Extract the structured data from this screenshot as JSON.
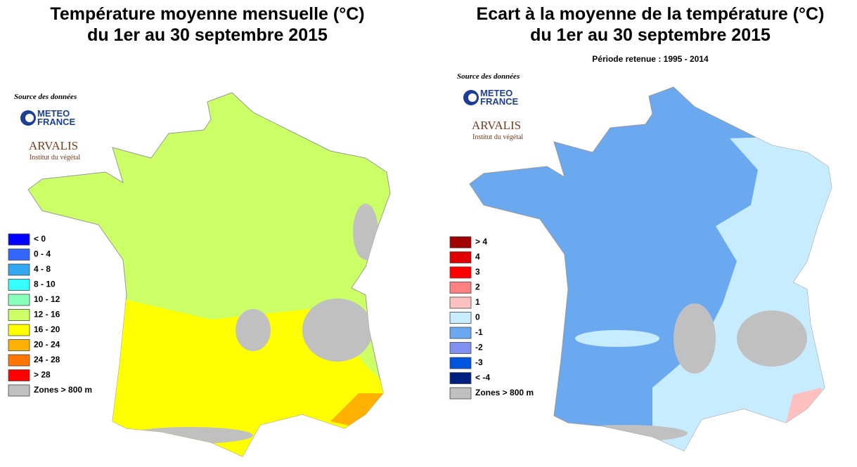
{
  "panels": [
    {
      "title": [
        "Température moyenne mensuelle (°C)",
        "du 1er au 30 septembre 2015"
      ],
      "source": {
        "label": "Source des données",
        "meteo": [
          "METEO",
          "FRANCE"
        ],
        "arvalis": "ARVALIS",
        "arvalis_sub": "Institut du végétal"
      },
      "legend": [
        {
          "label": "< 0",
          "color": "#0000ff"
        },
        {
          "label": "0 - 4",
          "color": "#3366ff"
        },
        {
          "label": "4 - 8",
          "color": "#33a8f0"
        },
        {
          "label": "8 - 10",
          "color": "#33ffff"
        },
        {
          "label": "10 - 12",
          "color": "#88ffbb"
        },
        {
          "label": "12 - 16",
          "color": "#ccff66"
        },
        {
          "label": "16 - 20",
          "color": "#ffff00"
        },
        {
          "label": "20 - 24",
          "color": "#ffb000"
        },
        {
          "label": "24 - 28",
          "color": "#ff7700"
        },
        {
          "label": "> 28",
          "color": "#ff0000"
        },
        {
          "label": "Zones > 800 m",
          "color": "#c0c0c0"
        }
      ]
    },
    {
      "title": [
        "Ecart à la moyenne de la température (°C)",
        "du 1er au 30 septembre 2015"
      ],
      "subtitle": "Période retenue :  1995 - 2014",
      "source": {
        "label": "Source des données",
        "meteo": [
          "METEO",
          "FRANCE"
        ],
        "arvalis": "ARVALIS",
        "arvalis_sub": "Institut du végétal"
      },
      "legend": [
        {
          "label": "> 4",
          "color": "#a00000"
        },
        {
          "label": "4",
          "color": "#e00000"
        },
        {
          "label": "3",
          "color": "#ff0000"
        },
        {
          "label": "2",
          "color": "#ff8080"
        },
        {
          "label": "1",
          "color": "#ffc0c0"
        },
        {
          "label": "0",
          "color": "#c8ecff"
        },
        {
          "label": "-1",
          "color": "#6aa8f0"
        },
        {
          "label": "-2",
          "color": "#8090f0"
        },
        {
          "label": "-3",
          "color": "#0055dd"
        },
        {
          "label": "< -4",
          "color": "#002080"
        },
        {
          "label": "Zones > 800 m",
          "color": "#c0c0c0"
        }
      ]
    }
  ]
}
